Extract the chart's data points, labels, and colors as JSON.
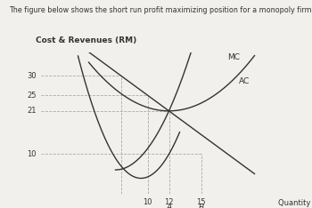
{
  "title_text": "The figure below shows the short run profit maximizing position for a monopoly firm.",
  "ylabel": "Cost & Revenues (RM)",
  "xlabel": "Quantity (units)",
  "yticks": [
    10,
    21,
    25,
    30
  ],
  "xticks": [
    10,
    12,
    15
  ],
  "x_label_A": 12,
  "x_label_B": 15,
  "label_A": "A",
  "label_B": "B",
  "label_MC": "MC",
  "label_AC": "AC",
  "dashed_color": "#aaaaaa",
  "curve_color": "#333333",
  "bg_color": "#f2f0ec",
  "xlim": [
    0,
    21
  ],
  "ylim": [
    0,
    36
  ]
}
